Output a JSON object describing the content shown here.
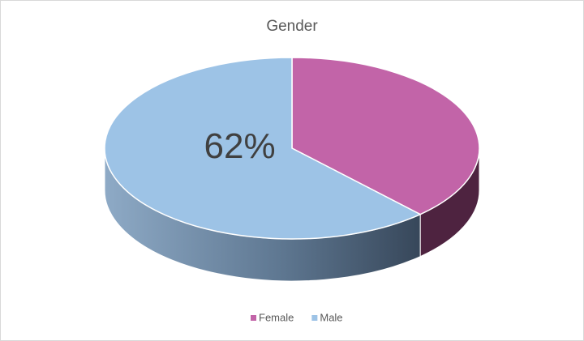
{
  "chart_data": {
    "type": "pie3d",
    "title": "Gender",
    "categories": [
      "Female",
      "Male"
    ],
    "values": [
      38,
      62
    ],
    "value_labels": [
      null,
      "62%"
    ],
    "colors": [
      "#c264a8",
      "#9dc3e6"
    ],
    "legend": "bottom"
  }
}
